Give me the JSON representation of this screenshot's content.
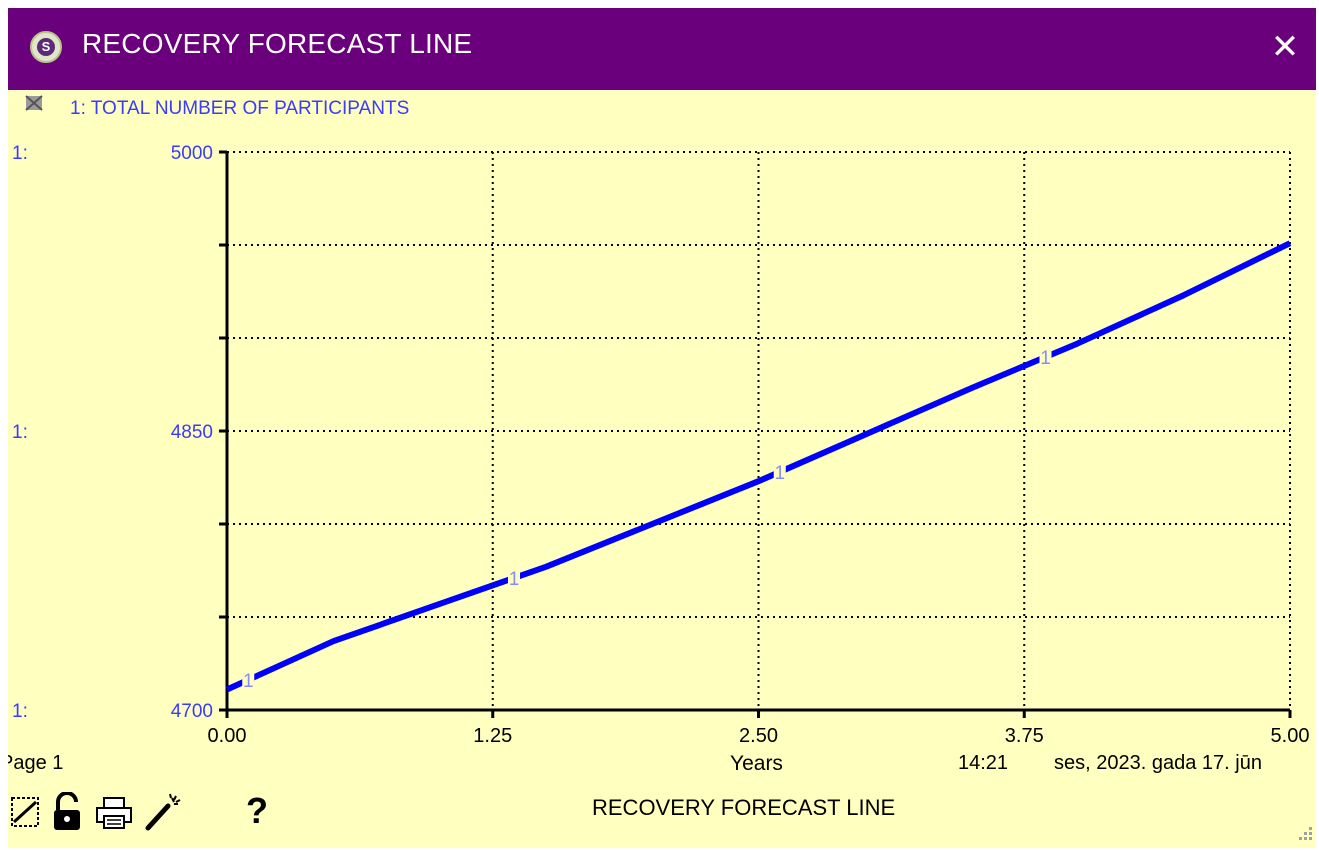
{
  "window": {
    "title": "RECOVERY FORECAST LINE",
    "app_icon_letter": "S",
    "close_glyph": "✕",
    "title_bar_color": "#6a007c",
    "background_color": "#ffffc0"
  },
  "chart_data": {
    "type": "line",
    "legend_label": "1: TOTAL NUMBER OF PARTICIPANTS",
    "series_prefix": "1:",
    "series": [
      {
        "name": "TOTAL NUMBER OF PARTICIPANTS",
        "marker": "1",
        "color": "#0000ff",
        "x": [
          0,
          0.5,
          1.0,
          1.5,
          2.0,
          2.5,
          3.0,
          3.5,
          4.0,
          4.5,
          5.0
        ],
        "y": [
          4711,
          4737,
          4757,
          4777,
          4800,
          4823,
          4848,
          4873,
          4897,
          4923,
          4951
        ]
      }
    ],
    "x_ticks": [
      "0.00",
      "1.25",
      "2.50",
      "3.75",
      "5.00"
    ],
    "y_ticks": [
      "4700",
      "4850",
      "5000"
    ],
    "xlim": [
      0,
      5
    ],
    "ylim": [
      4700,
      5000
    ],
    "xlabel": "Years",
    "grid": true
  },
  "footer": {
    "page_label": "Page 1",
    "time": "14:21",
    "date": "ses, 2023. gada 17. jūn",
    "title": "RECOVERY FORECAST LINE",
    "help_label": "?"
  },
  "toolbar": {
    "icons": [
      "pin-icon",
      "lock-icon",
      "print-icon",
      "magic-wand-icon"
    ]
  }
}
